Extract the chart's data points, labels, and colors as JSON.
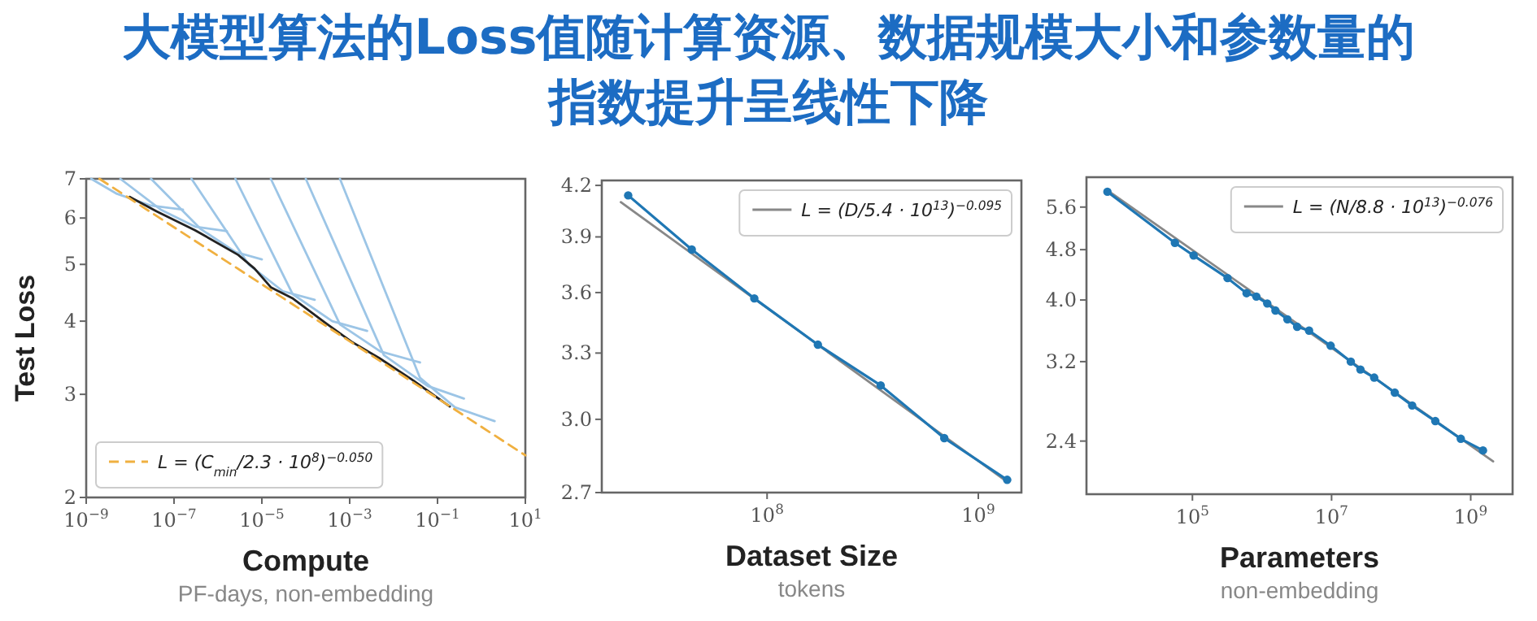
{
  "chart_data": [
    {
      "type": "line",
      "title": "大模型算法的Loss值随计算资源、数据规模大小和参数量的指数提升呈线性下降",
      "xlabel": "Compute",
      "ylabel": "Test Loss",
      "annotations": [
        "PF-days, non-embedding"
      ],
      "log": "xy",
      "xlim": [
        1e-09,
        10
      ],
      "ylim": [
        2,
        7
      ],
      "xticks": [
        {
          "value": 1e-09,
          "label": "10$^{−9}$"
        },
        {
          "value": 1e-07,
          "label": "10$^{−7}$"
        },
        {
          "value": 1e-05,
          "label": "10$^{−5}$"
        },
        {
          "value": 0.001,
          "label": "10$^{−3}$"
        },
        {
          "value": 0.1,
          "label": "10$^{−1}$"
        },
        {
          "value": 10,
          "label": "10$^{1}$"
        }
      ],
      "yticks": [
        2,
        3,
        4,
        5,
        6,
        7
      ],
      "legend": "bottom left",
      "series": [
        {
          "color": "#9cc5e6",
          "x": [
            1.3e-09,
            5e-09,
            3e-08,
            1.6e-07
          ],
          "values": [
            7.0,
            6.6,
            6.3,
            6.2
          ]
        },
        {
          "color": "#9cc5e6",
          "x": [
            6e-09,
            5e-08,
            3e-07,
            1.6e-06
          ],
          "values": [
            7.0,
            6.2,
            5.8,
            5.7
          ]
        },
        {
          "color": "#9cc5e6",
          "x": [
            3e-08,
            4e-07,
            2.5e-06,
            1e-05
          ],
          "values": [
            7.0,
            5.75,
            5.25,
            5.1
          ]
        },
        {
          "color": "#9cc5e6",
          "x": [
            2.5e-07,
            5e-06,
            3e-05,
            0.00016
          ],
          "values": [
            7.0,
            5.0,
            4.5,
            4.35
          ]
        },
        {
          "color": "#9cc5e6",
          "x": [
            2.5e-06,
            5e-05,
            0.0004,
            0.0025
          ],
          "values": [
            7.0,
            4.45,
            4.0,
            3.85
          ]
        },
        {
          "color": "#9cc5e6",
          "x": [
            1.6e-05,
            0.0006,
            0.005,
            0.04
          ],
          "values": [
            7.0,
            3.95,
            3.55,
            3.4
          ]
        },
        {
          "color": "#9cc5e6",
          "x": [
            0.0001,
            0.006,
            0.06,
            0.4
          ],
          "values": [
            7.0,
            3.5,
            3.1,
            2.95
          ]
        },
        {
          "color": "#9cc5e6",
          "x": [
            0.0006,
            0.04,
            0.25,
            2
          ],
          "values": [
            7.0,
            3.2,
            2.85,
            2.7
          ]
        },
        {
          "color": "#222222",
          "x": [
            9.8e-09,
            4e-08,
            3e-07,
            2.9e-06,
            6.8e-06,
            1.6e-05,
            4.9e-05,
            0.00027,
            0.0011,
            0.0047,
            0.026,
            0.19
          ],
          "values": [
            6.52,
            6.16,
            5.72,
            5.19,
            4.92,
            4.57,
            4.38,
            3.98,
            3.69,
            3.46,
            3.18,
            2.86
          ]
        },
        {
          "name": "L = (C$_{min}$/2.3 · 10$^{8}$)$^{−0.050}$",
          "color": "#f0b040",
          "line_style": "dashed",
          "x": [
            2e-09,
            10
          ],
          "values": [
            7.0,
            2.36
          ]
        }
      ]
    },
    {
      "type": "line",
      "xlabel": "Dataset Size",
      "annotations": [
        "tokens"
      ],
      "log": "xy",
      "xlim": [
        16500000.0,
        1600000000.0
      ],
      "ylim": [
        2.7,
        4.23
      ],
      "xticks": [
        {
          "value": 100000000.0,
          "label": "10$^{8}$"
        },
        {
          "value": 1000000000.0,
          "label": "10$^{9}$"
        }
      ],
      "yticks": [
        2.7,
        {
          "value": 3,
          "label": "3.0"
        },
        3.3,
        3.6,
        3.9,
        4.2
      ],
      "legend": "top right",
      "series": [
        {
          "name": "L = (D/5.4 · 10$^{13}$)$^{−0.095}$",
          "color": "#888888",
          "x": [
            20300000.0,
            1380000000.0
          ],
          "values": [
            4.1,
            2.74
          ]
        },
        {
          "color": "#1f77b4",
          "marker": "circle",
          "x": [
            22000000.0,
            44000000.0,
            87000000.0,
            174000000.0,
            345000000.0,
            690000000.0,
            1370000000.0
          ],
          "values": [
            4.14,
            3.83,
            3.57,
            3.34,
            3.15,
            2.92,
            2.75
          ]
        }
      ]
    },
    {
      "type": "line",
      "xlabel": "Parameters",
      "annotations": [
        "non-embedding"
      ],
      "log": "xy",
      "xlim": [
        3000,
        4000000000.0
      ],
      "ylim": [
        1.98,
        6.24
      ],
      "xticks": [
        {
          "value": 100000.0,
          "label": "10$^{5}$"
        },
        {
          "value": 10000000.0,
          "label": "10$^{7}$"
        },
        {
          "value": 1000000000.0,
          "label": "10$^{9}$"
        }
      ],
      "yticks": [
        2.4,
        3.2,
        {
          "value": 4,
          "label": "4.0"
        },
        4.8,
        5.6
      ],
      "legend": "top right",
      "series": [
        {
          "name": "L = (N/8.8 · 10$^{13}$)$^{−0.076}$",
          "color": "#888888",
          "x": [
            6000,
            2100000000.0
          ],
          "values": [
            5.95,
            2.23
          ]
        },
        {
          "color": "#1f77b4",
          "marker": "circle",
          "x": [
            6000,
            56000,
            104000,
            320000,
            600000,
            830000,
            1190000,
            1560000,
            2320000,
            3200000,
            4750000,
            9700000,
            18900000,
            26000000,
            41000000,
            81000000,
            144000000,
            310000000,
            720000000,
            1500000000
          ],
          "values": [
            5.92,
            4.92,
            4.7,
            4.33,
            4.1,
            4.05,
            3.95,
            3.85,
            3.73,
            3.63,
            3.58,
            3.39,
            3.2,
            3.11,
            3.02,
            2.86,
            2.73,
            2.58,
            2.42,
            2.32
          ]
        }
      ]
    }
  ]
}
